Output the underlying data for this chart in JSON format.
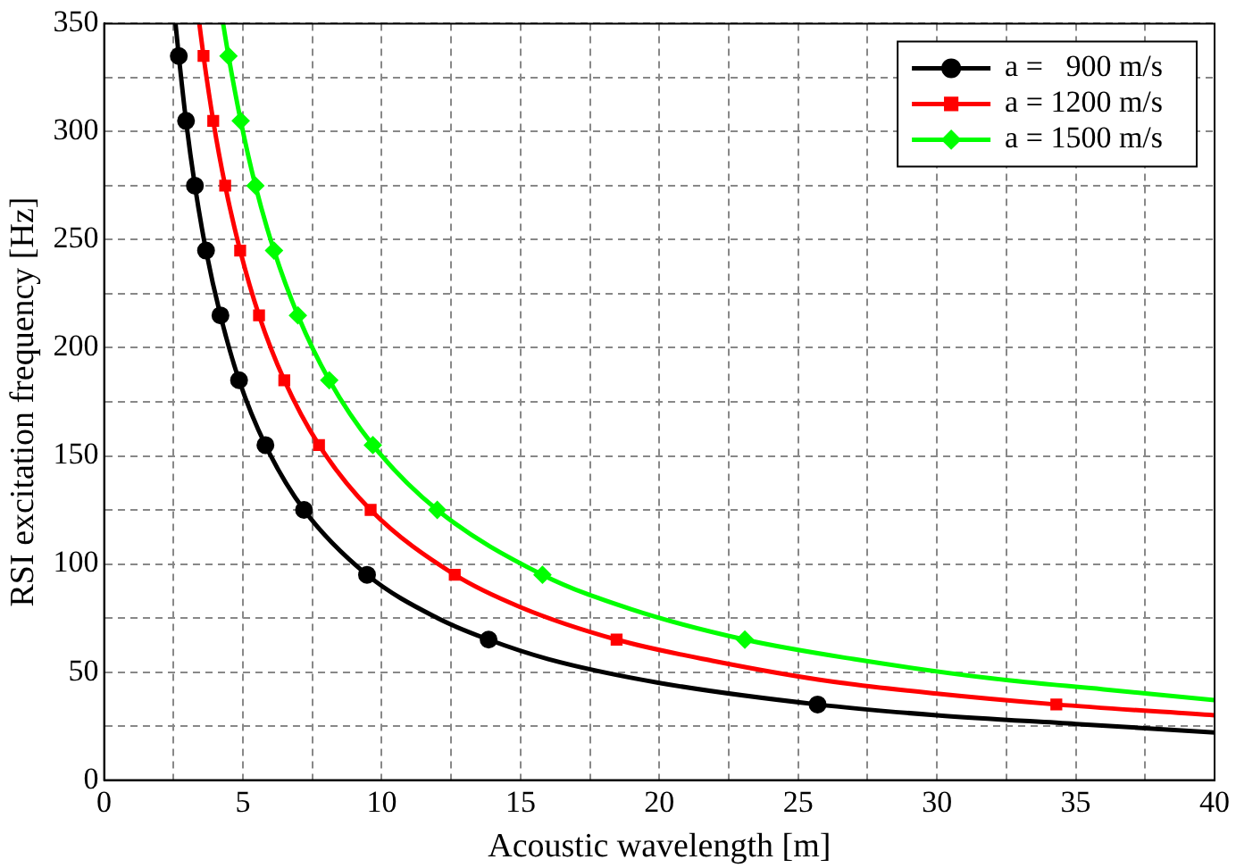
{
  "chart_data": {
    "type": "line",
    "xlabel": "Acoustic wavelength [m]",
    "ylabel": "RSI excitation frequency [Hz]",
    "xlim": [
      0,
      40
    ],
    "ylim": [
      0,
      350
    ],
    "xticks": [
      0,
      {
        "value": 2.5,
        "label": null
      },
      5,
      {
        "value": 7.5,
        "label": null
      },
      10,
      {
        "value": 12.5,
        "label": null
      },
      15,
      {
        "value": 17.5,
        "label": null
      },
      20,
      {
        "value": 22.5,
        "label": null
      },
      25,
      {
        "value": 27.5,
        "label": null
      },
      30,
      {
        "value": 32.5,
        "label": null
      },
      35,
      {
        "value": 37.5,
        "label": null
      },
      40
    ],
    "yticks": [
      0,
      {
        "value": 25,
        "label": null
      },
      50,
      {
        "value": 75,
        "label": null
      },
      100,
      {
        "value": 125,
        "label": null
      },
      150,
      {
        "value": 175,
        "label": null
      },
      200,
      {
        "value": 225,
        "label": null
      },
      250,
      {
        "value": 275,
        "label": null
      },
      300,
      {
        "value": 325,
        "label": null
      },
      350
    ],
    "grid": true,
    "legend": "top right",
    "line_style": "solid",
    "series": [
      {
        "name": "a =   900 m/s",
        "color": "#000000",
        "marker": "none",
        "x": [
          2.571,
          2.69,
          2.95,
          3.27,
          3.67,
          4.19,
          4.86,
          5.81,
          7.2,
          9.47,
          12,
          13.85,
          16,
          20,
          25.7,
          30,
          35,
          40
        ],
        "values": [
          350,
          335,
          305,
          275,
          245,
          215,
          185,
          155,
          125,
          95,
          75,
          65,
          56,
          45,
          35,
          30,
          26,
          22
        ]
      },
      {
        "name": "a = 1200 m/s",
        "color": "#ff0000",
        "marker": "none",
        "x": [
          3.429,
          3.58,
          3.93,
          4.36,
          4.9,
          5.58,
          6.49,
          7.74,
          9.6,
          12.63,
          15,
          18.46,
          22,
          26,
          30,
          34.3,
          40
        ],
        "values": [
          350,
          335,
          305,
          275,
          245,
          215,
          185,
          155,
          125,
          95,
          80,
          65,
          55,
          46,
          40,
          35,
          30
        ]
      },
      {
        "name": "a = 1500 m/s",
        "color": "#00ff00",
        "marker": "none",
        "x": [
          4.286,
          4.48,
          4.92,
          5.45,
          6.12,
          6.98,
          8.11,
          9.68,
          12,
          15.79,
          19,
          23.08,
          27,
          32,
          36,
          40
        ],
        "values": [
          350,
          335,
          305,
          275,
          245,
          215,
          185,
          155,
          125,
          95,
          79,
          65,
          56,
          47,
          42,
          37
        ]
      },
      {
        "type": "scatter",
        "color": "#000000",
        "marker": "circle",
        "x": [
          2.69,
          2.95,
          3.27,
          3.67,
          4.19,
          4.86,
          5.81,
          7.2,
          9.47,
          13.85,
          25.7
        ],
        "values": [
          335,
          305,
          275,
          245,
          215,
          185,
          155,
          125,
          95,
          65,
          35
        ]
      },
      {
        "type": "scatter",
        "color": "#ff0000",
        "marker": "square",
        "x": [
          3.58,
          3.93,
          4.36,
          4.9,
          5.58,
          6.49,
          7.74,
          9.6,
          12.63,
          18.46,
          34.3
        ],
        "values": [
          335,
          305,
          275,
          245,
          215,
          185,
          155,
          125,
          95,
          65,
          35
        ]
      },
      {
        "type": "scatter",
        "color": "#00ff00",
        "marker": "diamond",
        "x": [
          4.48,
          4.92,
          5.45,
          6.12,
          6.98,
          8.11,
          9.68,
          12,
          15.79,
          23.08
        ],
        "values": [
          335,
          305,
          275,
          245,
          215,
          185,
          155,
          125,
          95,
          65
        ]
      }
    ]
  }
}
